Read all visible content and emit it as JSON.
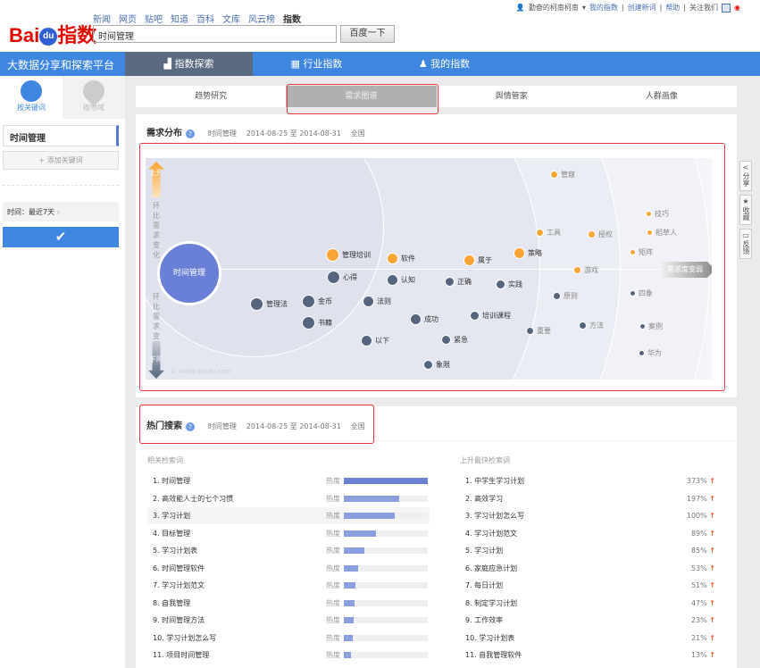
{
  "header": {
    "logo": "Baidu指数",
    "logo_du": "du",
    "links": [
      "新闻",
      "网页",
      "贴吧",
      "知道",
      "百科",
      "文库",
      "风云榜",
      "指数"
    ],
    "search_value": "时间管理",
    "search_button": "百度一下",
    "user": "勤奋的柯南柯南",
    "top_links": [
      "我的指数",
      "创建新词",
      "帮助",
      "关注我们"
    ]
  },
  "nav": {
    "brand": "大数据分享和探索平台",
    "items": [
      {
        "label": "指数探索",
        "icon": "chart-up-icon"
      },
      {
        "label": "行业指数",
        "icon": "grid-icon"
      },
      {
        "label": "我的指数",
        "icon": "user-icon"
      }
    ]
  },
  "sidebar": {
    "tabs": [
      "按关键词",
      "按地域"
    ],
    "keyword": "时间管理",
    "add_keyword": "+ 添加关键词",
    "time_label": "时间：最近7天",
    "confirm_icon": "checkmark-icon"
  },
  "tabs": [
    "趋势研究",
    "需求图谱",
    "舆情管家",
    "人群画像"
  ],
  "demand": {
    "title": "需求分布",
    "keyword": "时间管理",
    "date_range": "2014-08-25 至 2014-08-31",
    "region": "全国",
    "up_label": "上升",
    "down_label": "下降",
    "axis_label": "环比需求变化",
    "weaker_label": "需求度变弱",
    "watermark": "© index.baidu.com",
    "center": "时间管理",
    "colors": {
      "up": "#f7a535",
      "down": "#56657e",
      "center": "#6a80d6"
    },
    "nodes": [
      {
        "label": "管理培训",
        "trend": "up"
      },
      {
        "label": "软件",
        "trend": "up"
      },
      {
        "label": "心得",
        "trend": "down"
      },
      {
        "label": "认知",
        "trend": "down"
      },
      {
        "label": "管理法",
        "trend": "down"
      },
      {
        "label": "金币",
        "trend": "down"
      },
      {
        "label": "书籍",
        "trend": "down"
      },
      {
        "label": "法则",
        "trend": "down"
      },
      {
        "label": "成功",
        "trend": "down"
      },
      {
        "label": "以下",
        "trend": "down"
      },
      {
        "label": "象限",
        "trend": "down"
      },
      {
        "label": "属于",
        "trend": "up"
      },
      {
        "label": "策略",
        "trend": "up"
      },
      {
        "label": "正确",
        "trend": "down"
      },
      {
        "label": "实践",
        "trend": "down"
      },
      {
        "label": "培训课程",
        "trend": "down"
      },
      {
        "label": "紧急",
        "trend": "down"
      },
      {
        "label": "管窥",
        "trend": "up"
      },
      {
        "label": "工具",
        "trend": "up"
      },
      {
        "label": "授权",
        "trend": "up"
      },
      {
        "label": "游戏",
        "trend": "up"
      },
      {
        "label": "原则",
        "trend": "down"
      },
      {
        "label": "方法",
        "trend": "down"
      },
      {
        "label": "重要",
        "trend": "down"
      },
      {
        "label": "技巧",
        "trend": "up"
      },
      {
        "label": "稻草人",
        "trend": "up"
      },
      {
        "label": "矩阵",
        "trend": "up"
      },
      {
        "label": "四象",
        "trend": "down"
      },
      {
        "label": "案例",
        "trend": "down"
      },
      {
        "label": "华为",
        "trend": "down"
      }
    ]
  },
  "side_tools": [
    "分享",
    "收藏",
    "反馈"
  ],
  "hot": {
    "title": "热门搜索",
    "keyword": "时间管理",
    "date_range": "2014-08-25 至 2014-08-31",
    "region": "全国",
    "related_title": "相关检索词",
    "heat_label": "热度",
    "related": [
      {
        "label": "1. 时间管理",
        "heat": 1.0
      },
      {
        "label": "2. 高效能人士的七个习惯",
        "heat": 0.66
      },
      {
        "label": "3. 学习计划",
        "heat": 0.61
      },
      {
        "label": "4. 目标管理",
        "heat": 0.38
      },
      {
        "label": "5. 学习计划表",
        "heat": 0.24
      },
      {
        "label": "6. 时间管理软件",
        "heat": 0.17
      },
      {
        "label": "7. 学习计划范文",
        "heat": 0.14
      },
      {
        "label": "8. 自我管理",
        "heat": 0.13
      },
      {
        "label": "9. 时间管理方法",
        "heat": 0.12
      },
      {
        "label": "10. 学习计划怎么写",
        "heat": 0.11
      },
      {
        "label": "11. 项目时间管理",
        "heat": 0.09
      }
    ],
    "rising_title": "上升最快检索词",
    "rising": [
      {
        "label": "1. 中学生学习计划",
        "pct": "373%"
      },
      {
        "label": "2. 高效学习",
        "pct": "197%"
      },
      {
        "label": "3. 学习计划怎么写",
        "pct": "100%"
      },
      {
        "label": "4. 学习计划范文",
        "pct": "89%"
      },
      {
        "label": "5. 学习计划",
        "pct": "85%"
      },
      {
        "label": "6. 家庭应急计划",
        "pct": "53%"
      },
      {
        "label": "7. 每日计划",
        "pct": "51%"
      },
      {
        "label": "8. 制定学习计划",
        "pct": "47%"
      },
      {
        "label": "9. 工作效率",
        "pct": "23%"
      },
      {
        "label": "10. 学习计划表",
        "pct": "21%"
      },
      {
        "label": "11. 自我管理软件",
        "pct": "13%"
      }
    ]
  }
}
